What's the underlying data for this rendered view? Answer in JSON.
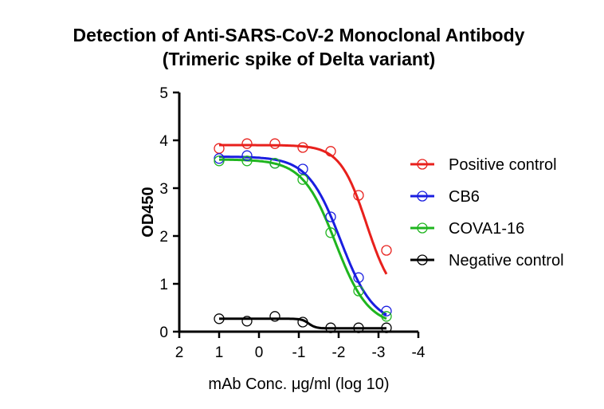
{
  "chart_data": {
    "type": "scatter",
    "title": "Detection of Anti-SARS-CoV-2 Monoclonal Antibody",
    "subtitle": "(Trimeric spike of Delta variant)",
    "xlabel": "mAb Conc. μg/ml (log 10)",
    "ylabel": "OD450",
    "xlim": [
      2,
      -4
    ],
    "ylim": [
      0,
      5
    ],
    "xticks": [
      "2",
      "1",
      "0",
      "-1",
      "-2",
      "-3",
      "-4"
    ],
    "xtick_values": [
      2,
      1,
      0,
      -1,
      -2,
      -3,
      -4
    ],
    "yticks": [
      "0",
      "1",
      "2",
      "3",
      "4",
      "5"
    ],
    "ytick_values": [
      0,
      1,
      2,
      3,
      4,
      5
    ],
    "grid": false,
    "legend_position": "right",
    "x": [
      1,
      0.3,
      -0.4,
      -1.1,
      -1.8,
      -2.5,
      -3.2
    ],
    "series": [
      {
        "name": "Positive control",
        "color": "#e8201c",
        "values": [
          3.83,
          3.93,
          3.93,
          3.85,
          3.77,
          2.85,
          1.7
        ],
        "fit": {
          "top": 3.9,
          "bottom": 0.6,
          "logEC50": -2.7,
          "hill": 1.3
        }
      },
      {
        "name": "CB6",
        "color": "#1a1ee0",
        "values": [
          3.62,
          3.68,
          3.52,
          3.4,
          2.4,
          1.13,
          0.43
        ],
        "fit": {
          "top": 3.66,
          "bottom": 0.15,
          "logEC50": -2.05,
          "hill": 1.05
        }
      },
      {
        "name": "COVA1-16",
        "color": "#1fb51f",
        "values": [
          3.57,
          3.57,
          3.52,
          3.18,
          2.07,
          0.85,
          0.32
        ],
        "fit": {
          "top": 3.6,
          "bottom": 0.12,
          "logEC50": -1.92,
          "hill": 1.05
        }
      },
      {
        "name": "Negative control",
        "color": "#000000",
        "values": [
          0.27,
          0.22,
          0.32,
          0.2,
          0.08,
          0.08,
          0.08
        ],
        "fit": {
          "top": 0.27,
          "bottom": 0.07,
          "logEC50": -1.25,
          "hill": 5
        }
      }
    ]
  }
}
